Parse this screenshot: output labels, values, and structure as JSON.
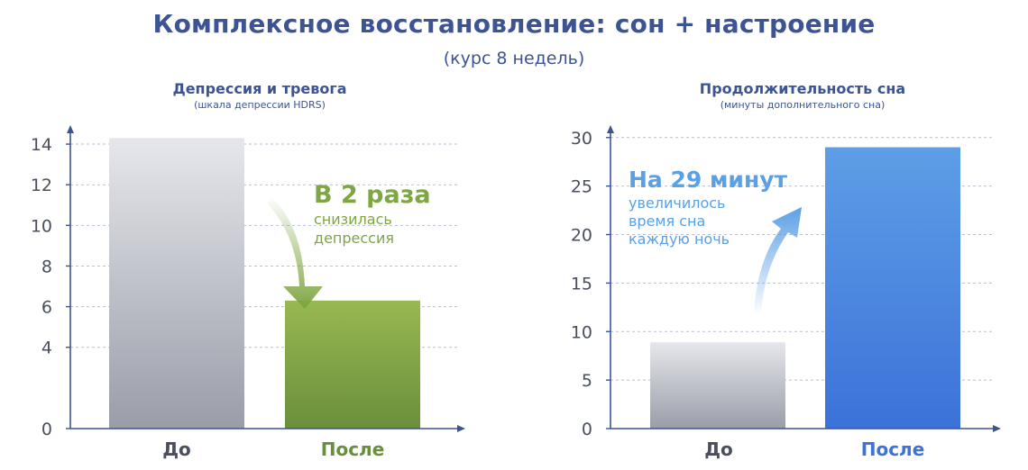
{
  "header": {
    "title": "Комплексное восстановление: сон + настроение",
    "subtitle": "(курс 8 недель)"
  },
  "colors": {
    "title": "#3d5494",
    "before_top": "#e6e7ec",
    "before_bottom": "#9a9da8",
    "after_left_top": "#98b851",
    "after_left_bottom": "#6a8f3c",
    "after_right_top": "#5e9ee6",
    "after_right_bottom": "#3c72d9",
    "annotation_green": "#7ea642",
    "annotation_blue": "#5ca0e4"
  },
  "chart_data": [
    {
      "type": "bar",
      "title": "Депрессия и тревога",
      "subtitle": "(шкала депрессии HDRS)",
      "categories": [
        "До",
        "После"
      ],
      "values": [
        14.3,
        6.3
      ],
      "ylim": [
        0,
        14.8
      ],
      "yticks": [
        0,
        4,
        6,
        8,
        10,
        12,
        14
      ],
      "grid": true,
      "annotation": {
        "headline": "В 2 раза",
        "line1": "снизилась",
        "line2": "депрессия",
        "arrow": "down"
      }
    },
    {
      "type": "bar",
      "title": "Продолжительность сна",
      "subtitle": "(минуты дополнительного сна)",
      "categories": [
        "До",
        "После"
      ],
      "values": [
        8.9,
        29
      ],
      "ylim": [
        0,
        31
      ],
      "yticks": [
        0,
        5,
        10,
        15,
        20,
        25,
        30
      ],
      "grid": true,
      "annotation": {
        "headline": "На 29 минут",
        "line1": "увеличилось",
        "line2": "время сна",
        "line3": "каждую ночь",
        "arrow": "up"
      }
    }
  ]
}
